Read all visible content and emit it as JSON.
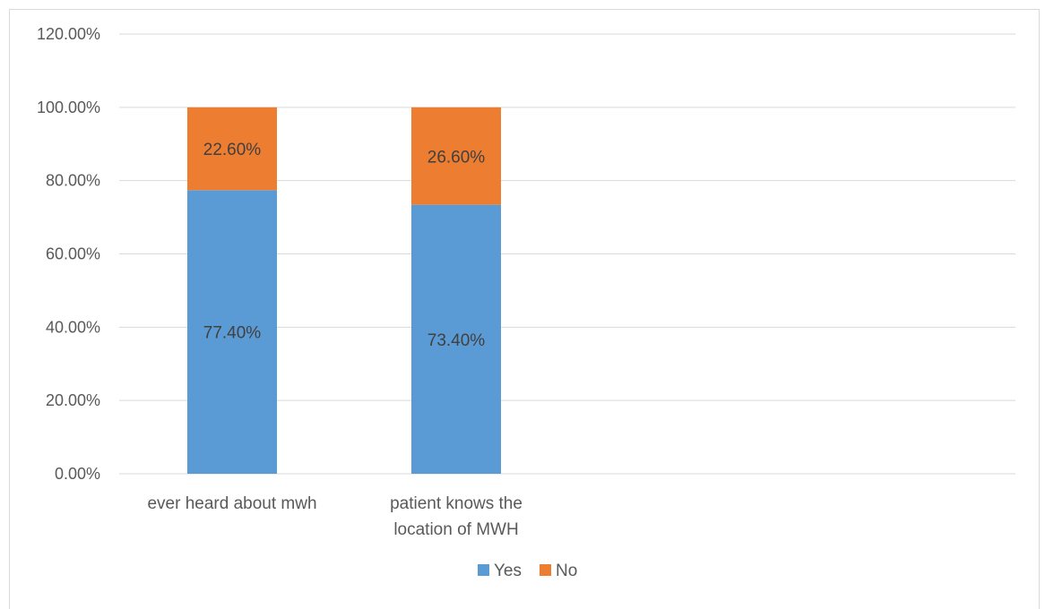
{
  "chart_data": {
    "type": "bar",
    "stacked": true,
    "categories": [
      [
        "ever heard about mwh"
      ],
      [
        "patient knows the",
        "location of MWH"
      ]
    ],
    "series": [
      {
        "name": "Yes",
        "color": "#5b9bd5",
        "values": [
          77.4,
          73.4
        ],
        "labels": [
          "77.40%",
          "73.40%"
        ]
      },
      {
        "name": "No",
        "color": "#ed7d31",
        "values": [
          22.6,
          26.6
        ],
        "labels": [
          "22.60%",
          "26.60%"
        ]
      }
    ],
    "ylim": [
      0,
      120
    ],
    "yticks": [
      "0.00%",
      "20.00%",
      "40.00%",
      "60.00%",
      "80.00%",
      "100.00%",
      "120.00%"
    ],
    "grid": true,
    "legend": "bottom"
  }
}
